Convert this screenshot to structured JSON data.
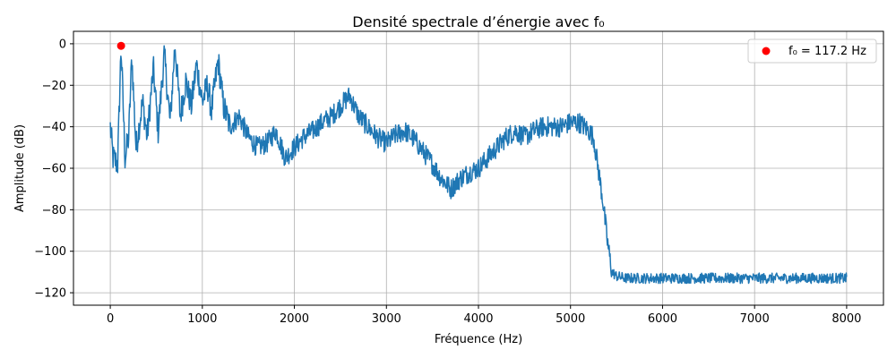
{
  "chart_data": {
    "type": "line",
    "title": "Densité spectrale d’énergie avec f₀",
    "xlabel": "Fréquence (Hz)",
    "ylabel": "Amplitude (dB)",
    "xlim": [
      -400,
      8400
    ],
    "ylim": [
      -126,
      6
    ],
    "xticks": [
      0,
      1000,
      2000,
      3000,
      4000,
      5000,
      6000,
      7000,
      8000
    ],
    "yticks": [
      0,
      -20,
      -40,
      -60,
      -80,
      -100,
      -120
    ],
    "xtick_labels": [
      "0",
      "1000",
      "2000",
      "3000",
      "4000",
      "5000",
      "6000",
      "7000",
      "8000"
    ],
    "ytick_labels": [
      "0",
      "−20",
      "−40",
      "−60",
      "−80",
      "−100",
      "−120"
    ],
    "grid": true,
    "legend_position": "top-right",
    "colors": {
      "line": "#1f77b4",
      "marker": "#ff0000"
    },
    "series": [
      {
        "type": "line",
        "x_range": [
          0,
          8000
        ],
        "envelope": [
          [
            0,
            -40
          ],
          [
            30,
            -55
          ],
          [
            80,
            -58
          ],
          [
            117,
            -1
          ],
          [
            160,
            -55
          ],
          [
            200,
            -45
          ],
          [
            234,
            -6
          ],
          [
            280,
            -50
          ],
          [
            351,
            -28
          ],
          [
            400,
            -45
          ],
          [
            468,
            -12
          ],
          [
            520,
            -42
          ],
          [
            586,
            -5
          ],
          [
            650,
            -38
          ],
          [
            703,
            0
          ],
          [
            760,
            -35
          ],
          [
            820,
            -18
          ],
          [
            880,
            -30
          ],
          [
            937,
            -10
          ],
          [
            1000,
            -28
          ],
          [
            1055,
            -20
          ],
          [
            1100,
            -32
          ],
          [
            1172,
            -8
          ],
          [
            1230,
            -30
          ],
          [
            1300,
            -40
          ],
          [
            1400,
            -35
          ],
          [
            1500,
            -45
          ],
          [
            1600,
            -50
          ],
          [
            1700,
            -48
          ],
          [
            1800,
            -42
          ],
          [
            1900,
            -55
          ],
          [
            2000,
            -50
          ],
          [
            2100,
            -45
          ],
          [
            2200,
            -42
          ],
          [
            2300,
            -38
          ],
          [
            2400,
            -35
          ],
          [
            2500,
            -30
          ],
          [
            2600,
            -25
          ],
          [
            2700,
            -35
          ],
          [
            2800,
            -40
          ],
          [
            2900,
            -45
          ],
          [
            3000,
            -48
          ],
          [
            3100,
            -44
          ],
          [
            3200,
            -42
          ],
          [
            3300,
            -46
          ],
          [
            3400,
            -52
          ],
          [
            3500,
            -58
          ],
          [
            3600,
            -65
          ],
          [
            3700,
            -70
          ],
          [
            3800,
            -65
          ],
          [
            3900,
            -62
          ],
          [
            4000,
            -60
          ],
          [
            4100,
            -55
          ],
          [
            4200,
            -50
          ],
          [
            4300,
            -45
          ],
          [
            4400,
            -42
          ],
          [
            4500,
            -45
          ],
          [
            4600,
            -42
          ],
          [
            4700,
            -40
          ],
          [
            4800,
            -40
          ],
          [
            4900,
            -40
          ],
          [
            5000,
            -38
          ],
          [
            5100,
            -38
          ],
          [
            5200,
            -42
          ],
          [
            5250,
            -45
          ],
          [
            5300,
            -60
          ],
          [
            5350,
            -75
          ],
          [
            5400,
            -95
          ],
          [
            5450,
            -110
          ],
          [
            5500,
            -112
          ],
          [
            5600,
            -113
          ],
          [
            6000,
            -113
          ],
          [
            6500,
            -113
          ],
          [
            7000,
            -113
          ],
          [
            7500,
            -113
          ],
          [
            8000,
            -113
          ]
        ]
      }
    ],
    "points": [
      {
        "name": "f₀ = 117.2 Hz",
        "x": 117.2,
        "y": -1
      }
    ]
  },
  "legend": {
    "label": "f₀ = 117.2 Hz"
  }
}
